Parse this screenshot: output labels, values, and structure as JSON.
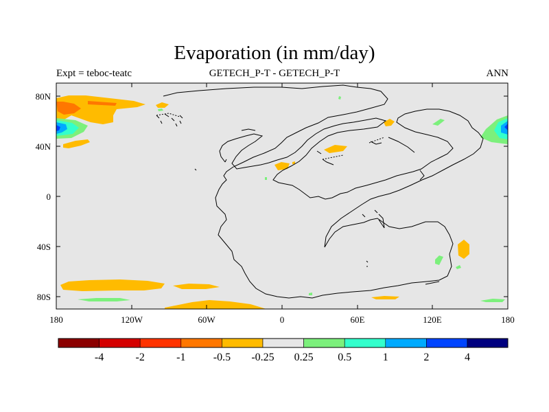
{
  "header": {
    "title": "Evaporation (in mm/day)",
    "left": "Expt = teboc-teatc",
    "center": "GETECH_P-T - GETECH_P-T",
    "right": "ANN"
  },
  "axes": {
    "lat_labels": [
      "80N",
      "40N",
      "0",
      "40S",
      "80S"
    ],
    "lon_labels": [
      "180",
      "120W",
      "60W",
      "0",
      "60E",
      "120E",
      "180"
    ]
  },
  "colorbar": {
    "labels": [
      "-4",
      "-2",
      "-1",
      "-0.5",
      "-0.25",
      "0.25",
      "0.5",
      "1",
      "2",
      "4"
    ],
    "colors": [
      "#8b0000",
      "#d40000",
      "#ff3300",
      "#ff7700",
      "#ffbb00",
      "#e6e6e6",
      "#7cf07c",
      "#33ffcc",
      "#00aaff",
      "#0044ff",
      "#00007f"
    ]
  },
  "map_colors": {
    "background": "#e6e6e6",
    "coast": "#000000"
  }
}
